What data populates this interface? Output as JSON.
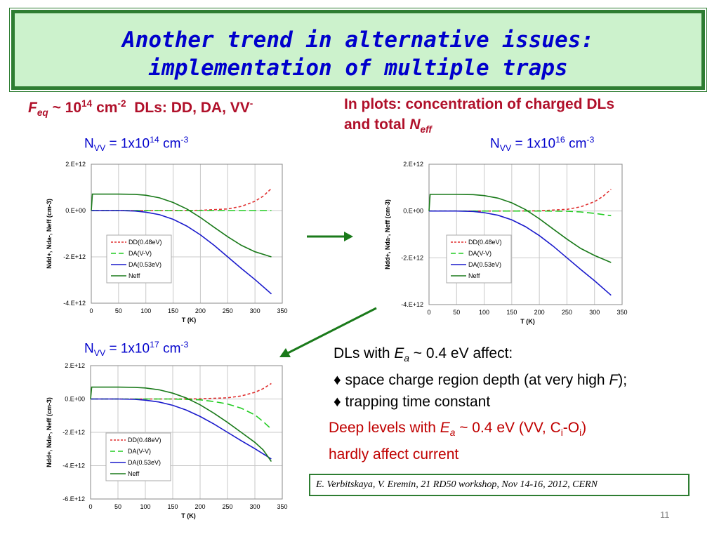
{
  "title": {
    "line1": "Another trend in alternative issues:",
    "line2": "implementation of multiple traps"
  },
  "heading_left": {
    "feq_F": "F",
    "feq_sub": "eq",
    "feq_rest": " ~ 10",
    "feq_exp": "14",
    "feq_unit": " cm",
    "feq_unit_exp": "-2",
    "dls": "  DLs: DD, DA, VV",
    "dls_exp": "-"
  },
  "heading_right": {
    "line1": "In plots: concentration of charged DLs",
    "line2_prefix": "and total ",
    "line2_N": "N",
    "line2_sub": "eff"
  },
  "nvv_labels": [
    {
      "pre": "N",
      "sub": "VV",
      "mid": " = 1x10",
      "exp": "14",
      "unit": " cm",
      "unit_exp": "-3"
    },
    {
      "pre": "N",
      "sub": "VV",
      "mid": " = 1x10",
      "exp": "16",
      "unit": " cm",
      "unit_exp": "-3"
    },
    {
      "pre": "N",
      "sub": "VV",
      "mid": " = 1x10",
      "exp": "17",
      "unit": " cm",
      "unit_exp": "-3"
    }
  ],
  "colors": {
    "dd": "#e03030",
    "da_vv": "#22cc22",
    "da_053": "#1a1acc",
    "neff": "#1a7a1a",
    "arrow": "#1a7a1a"
  },
  "chart_data": [
    {
      "type": "line",
      "xlabel": "T (K)",
      "ylabel": "Ndd+, Nda-, Neff (cm-3)",
      "xlim": [
        0,
        350
      ],
      "ylim": [
        -4000000000000.0,
        2000000000000.0
      ],
      "x_ticks": [
        0,
        50,
        100,
        150,
        200,
        250,
        300,
        350
      ],
      "y_ticks": [
        {
          "v": 2000000000000.0,
          "label": "2.E+12"
        },
        {
          "v": 0,
          "label": "0.E+00"
        },
        {
          "v": -2000000000000.0,
          "label": "-2.E+12"
        },
        {
          "v": -4000000000000.0,
          "label": "-4.E+12"
        }
      ],
      "legend_position": "bottom-left",
      "series": [
        {
          "name": "DD(0.48eV)",
          "style": "dash-short",
          "color_key": "dd",
          "x": [
            0,
            150,
            200,
            250,
            275,
            300,
            315,
            330
          ],
          "values": [
            0,
            0,
            10000000000.0,
            70000000000.0,
            180000000000.0,
            400000000000.0,
            620000000000.0,
            950000000000.0
          ]
        },
        {
          "name": "DA(V-V)",
          "style": "dash-long",
          "color_key": "da_vv",
          "x": [
            0,
            330
          ],
          "values": [
            0,
            0
          ]
        },
        {
          "name": "DA(0.53eV)",
          "style": "solid",
          "color_key": "da_053",
          "x": [
            0,
            50,
            80,
            100,
            125,
            150,
            175,
            200,
            225,
            250,
            275,
            300,
            330
          ],
          "values": [
            0,
            0,
            -20000000000.0,
            -70000000000.0,
            -180000000000.0,
            -380000000000.0,
            -670000000000.0,
            -1050000000000.0,
            -1500000000000.0,
            -2000000000000.0,
            -2500000000000.0,
            -2980000000000.0,
            -3600000000000.0
          ]
        },
        {
          "name": "Neff",
          "style": "solid",
          "color_key": "neff",
          "x": [
            0,
            2,
            5,
            50,
            80,
            100,
            125,
            150,
            175,
            200,
            225,
            250,
            275,
            300,
            330
          ],
          "values": [
            0,
            710000000000.0,
            710000000000.0,
            710000000000.0,
            700000000000.0,
            660000000000.0,
            550000000000.0,
            350000000000.0,
            70000000000.0,
            -300000000000.0,
            -720000000000.0,
            -1130000000000.0,
            -1500000000000.0,
            -1780000000000.0,
            -2000000000000.0
          ]
        }
      ]
    },
    {
      "type": "line",
      "xlabel": "T (K)",
      "ylabel": "Ndd+, Nda-, Neff (cm-3)",
      "xlim": [
        0,
        350
      ],
      "ylim": [
        -4000000000000.0,
        2000000000000.0
      ],
      "x_ticks": [
        0,
        50,
        100,
        150,
        200,
        250,
        300,
        350
      ],
      "y_ticks": [
        {
          "v": 2000000000000.0,
          "label": "2.E+12"
        },
        {
          "v": 0,
          "label": "0.E+00"
        },
        {
          "v": -2000000000000.0,
          "label": "-2.E+12"
        },
        {
          "v": -4000000000000.0,
          "label": "-4.E+12"
        }
      ],
      "legend_position": "bottom-left",
      "series": [
        {
          "name": "DD(0.48eV)",
          "style": "dash-short",
          "color_key": "dd",
          "x": [
            0,
            150,
            200,
            250,
            275,
            300,
            315,
            330
          ],
          "values": [
            0,
            0,
            10000000000.0,
            70000000000.0,
            180000000000.0,
            400000000000.0,
            620000000000.0,
            930000000000.0
          ]
        },
        {
          "name": "DA(V-V)",
          "style": "dash-long",
          "color_key": "da_vv",
          "x": [
            0,
            200,
            250,
            275,
            300,
            315,
            330
          ],
          "values": [
            0,
            0,
            -10000000000.0,
            -40000000000.0,
            -100000000000.0,
            -150000000000.0,
            -200000000000.0
          ]
        },
        {
          "name": "DA(0.53eV)",
          "style": "solid",
          "color_key": "da_053",
          "x": [
            0,
            50,
            80,
            100,
            125,
            150,
            175,
            200,
            225,
            250,
            275,
            300,
            330
          ],
          "values": [
            0,
            0,
            -20000000000.0,
            -70000000000.0,
            -180000000000.0,
            -380000000000.0,
            -670000000000.0,
            -1050000000000.0,
            -1500000000000.0,
            -2000000000000.0,
            -2500000000000.0,
            -2980000000000.0,
            -3600000000000.0
          ]
        },
        {
          "name": "Neff",
          "style": "solid",
          "color_key": "neff",
          "x": [
            0,
            2,
            5,
            50,
            80,
            100,
            125,
            150,
            175,
            200,
            225,
            250,
            275,
            300,
            330
          ],
          "values": [
            0,
            710000000000.0,
            710000000000.0,
            710000000000.0,
            700000000000.0,
            660000000000.0,
            550000000000.0,
            350000000000.0,
            60000000000.0,
            -330000000000.0,
            -770000000000.0,
            -1200000000000.0,
            -1600000000000.0,
            -1900000000000.0,
            -2200000000000.0
          ]
        }
      ]
    },
    {
      "type": "line",
      "xlabel": "T (K)",
      "ylabel": "Ndd+, Nda-, Neff (cm-3)",
      "xlim": [
        0,
        350
      ],
      "ylim": [
        -6000000000000.0,
        2000000000000.0
      ],
      "x_ticks": [
        0,
        50,
        100,
        150,
        200,
        250,
        300,
        350
      ],
      "y_ticks": [
        {
          "v": 2000000000000.0,
          "label": "2.E+12"
        },
        {
          "v": 0,
          "label": "0.E+00"
        },
        {
          "v": -2000000000000.0,
          "label": "-2.E+12"
        },
        {
          "v": -4000000000000.0,
          "label": "-4.E+12"
        },
        {
          "v": -6000000000000.0,
          "label": "-6.E+12"
        }
      ],
      "legend_position": "bottom-left",
      "series": [
        {
          "name": "DD(0.48eV)",
          "style": "dash-short",
          "color_key": "dd",
          "x": [
            0,
            150,
            200,
            250,
            275,
            300,
            315,
            330
          ],
          "values": [
            0,
            0,
            10000000000.0,
            70000000000.0,
            180000000000.0,
            400000000000.0,
            620000000000.0,
            930000000000.0
          ]
        },
        {
          "name": "DA(V-V)",
          "style": "dash-long",
          "color_key": "da_vv",
          "x": [
            0,
            150,
            200,
            225,
            250,
            275,
            300,
            315,
            330
          ],
          "values": [
            0,
            0,
            -50000000000.0,
            -150000000000.0,
            -300000000000.0,
            -550000000000.0,
            -950000000000.0,
            -1350000000000.0,
            -1800000000000.0
          ]
        },
        {
          "name": "DA(0.53eV)",
          "style": "solid",
          "color_key": "da_053",
          "x": [
            0,
            50,
            80,
            100,
            125,
            150,
            175,
            200,
            225,
            250,
            275,
            300,
            330
          ],
          "values": [
            0,
            0,
            -20000000000.0,
            -70000000000.0,
            -180000000000.0,
            -380000000000.0,
            -670000000000.0,
            -1050000000000.0,
            -1500000000000.0,
            -2000000000000.0,
            -2500000000000.0,
            -2980000000000.0,
            -3600000000000.0
          ]
        },
        {
          "name": "Neff",
          "style": "solid",
          "color_key": "neff",
          "x": [
            0,
            2,
            5,
            50,
            80,
            100,
            125,
            150,
            175,
            200,
            225,
            250,
            275,
            300,
            315,
            330
          ],
          "values": [
            0,
            710000000000.0,
            710000000000.0,
            710000000000.0,
            700000000000.0,
            660000000000.0,
            550000000000.0,
            350000000000.0,
            60000000000.0,
            -350000000000.0,
            -850000000000.0,
            -1400000000000.0,
            -2000000000000.0,
            -2600000000000.0,
            -3050000000000.0,
            -3750000000000.0
          ]
        }
      ]
    }
  ],
  "text_dark": {
    "l1_prefix": "DLs with ",
    "l1_E": "E",
    "l1_sub": "a",
    "l1_suffix": " ~ 0.4 eV affect:",
    "l2_prefix": "♦ space charge region depth (at very high ",
    "l2_F": "F",
    "l2_suffix": ");",
    "l3": "♦ trapping time constant"
  },
  "text_red": {
    "l1_prefix": "Deep levels with ",
    "l1_E": "E",
    "l1_sub": "a",
    "l1_mid": " ~ 0.4 eV (VV, C",
    "l1_sub2": "i",
    "l1_dash": "-O",
    "l1_sub3": "i",
    "l1_end": ")",
    "l2": "hardly affect current"
  },
  "reference": "E. Verbitskaya, V. Eremin, 21 RD50 workshop, Nov 14-16, 2012, CERN",
  "slide_number": "11"
}
